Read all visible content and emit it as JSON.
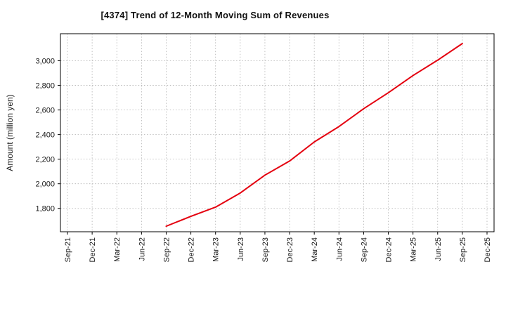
{
  "chart_data": {
    "type": "line",
    "title": "[4374]  Trend of 12-Month Moving Sum of Revenues",
    "xlabel": "",
    "ylabel": "Amount (million yen)",
    "categories": [
      "Sep-21",
      "Dec-21",
      "Mar-22",
      "Jun-22",
      "Sep-22",
      "Dec-22",
      "Mar-23",
      "Jun-23",
      "Sep-23",
      "Dec-23",
      "Mar-24",
      "Jun-24",
      "Sep-24",
      "Dec-24",
      "Mar-25",
      "Jun-25",
      "Sep-25",
      "Dec-25"
    ],
    "series": [
      {
        "name": "12-Month Moving Sum of Revenues",
        "color": "#e4000f",
        "values": [
          null,
          null,
          null,
          null,
          1655,
          1735,
          1810,
          1925,
          2070,
          2185,
          2340,
          2465,
          2610,
          2740,
          2880,
          3005,
          3140,
          null
        ]
      }
    ],
    "ylim": [
      1610,
      3220
    ],
    "yticks": [
      1800,
      2000,
      2200,
      2400,
      2600,
      2800,
      3000
    ],
    "grid": true,
    "grid_style": "dotted",
    "legend": "none",
    "frame_color": "#000000",
    "grid_color": "#b0b0b0"
  }
}
